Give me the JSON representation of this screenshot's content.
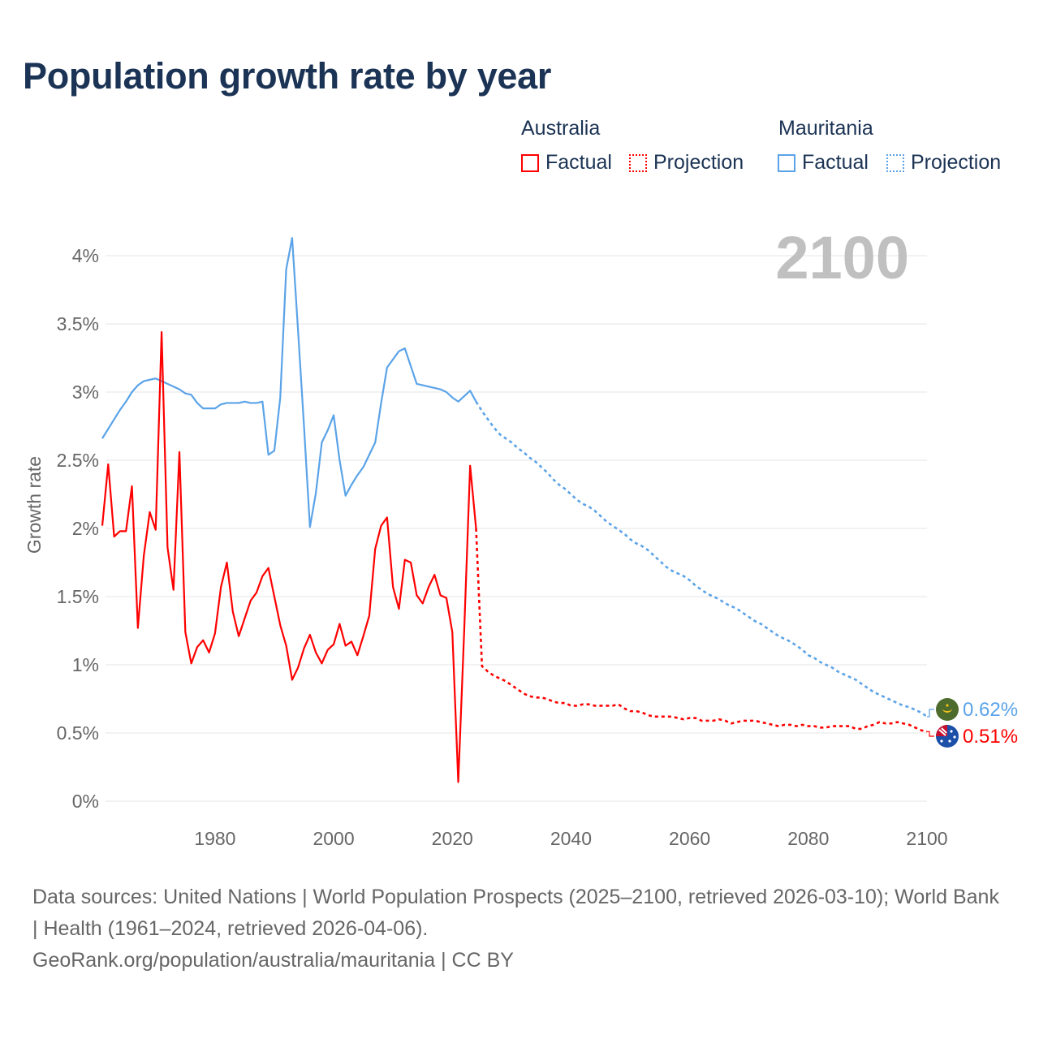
{
  "title": "Population growth rate by year",
  "legend": {
    "groups": [
      {
        "country": "Australia",
        "factual": "Factual",
        "projection": "Projection",
        "color": "#ff0000"
      },
      {
        "country": "Mauritania",
        "factual": "Factual",
        "projection": "Projection",
        "color": "#5ba3e8"
      }
    ]
  },
  "footer": {
    "sources": "Data sources: United Nations | World Population Prospects (2025–2100, retrieved 2026-03-10); World Bank | Health (1961–2024, retrieved 2026-04-06).",
    "credit": "GeoRank.org/population/australia/mauritania | CC BY"
  },
  "chart_data": {
    "type": "line",
    "title": "Population growth rate by year",
    "ylabel": "Growth rate",
    "xlabel": "",
    "year_label": "2100",
    "xlim": [
      1961,
      2100
    ],
    "ylim": [
      0,
      4.2
    ],
    "x_ticks": [
      1980,
      2000,
      2020,
      2040,
      2060,
      2080,
      2100
    ],
    "y_ticks": [
      0,
      0.5,
      1,
      1.5,
      2,
      2.5,
      3,
      3.5,
      4
    ],
    "y_tick_labels": [
      "0%",
      "0.5%",
      "1%",
      "1.5%",
      "2%",
      "2.5%",
      "3%",
      "3.5%",
      "4%"
    ],
    "grid": true,
    "legend_position": "top-right",
    "series": [
      {
        "name": "Australia",
        "color": "#ff0000",
        "end_label": "0.51%",
        "factual_start": 1961,
        "factual": [
          2.02,
          2.47,
          1.94,
          1.98,
          1.98,
          2.31,
          1.27,
          1.8,
          2.12,
          1.99,
          3.44,
          1.86,
          1.55,
          2.56,
          1.24,
          1.01,
          1.13,
          1.18,
          1.09,
          1.23,
          1.57,
          1.75,
          1.39,
          1.21,
          1.34,
          1.47,
          1.53,
          1.65,
          1.71,
          1.5,
          1.29,
          1.14,
          0.89,
          0.98,
          1.12,
          1.22,
          1.09,
          1.01,
          1.11,
          1.15,
          1.3,
          1.14,
          1.17,
          1.07,
          1.21,
          1.36,
          1.85,
          2.02,
          2.08,
          1.57,
          1.41,
          1.77,
          1.75,
          1.51,
          1.45,
          1.57,
          1.66,
          1.51,
          1.49,
          1.24,
          0.14,
          1.25,
          2.46,
          2.0
        ],
        "projection_start": 2025,
        "projection": [
          0.99,
          0.95,
          0.92,
          0.9,
          0.88,
          0.85,
          0.82,
          0.79,
          0.77,
          0.76,
          0.76,
          0.75,
          0.73,
          0.72,
          0.72,
          0.7,
          0.7,
          0.71,
          0.71,
          0.7,
          0.7,
          0.7,
          0.7,
          0.71,
          0.68,
          0.66,
          0.66,
          0.65,
          0.63,
          0.62,
          0.62,
          0.62,
          0.62,
          0.61,
          0.6,
          0.61,
          0.61,
          0.59,
          0.59,
          0.59,
          0.6,
          0.59,
          0.57,
          0.58,
          0.59,
          0.59,
          0.59,
          0.58,
          0.57,
          0.56,
          0.55,
          0.56,
          0.56,
          0.55,
          0.56,
          0.55,
          0.55,
          0.54,
          0.54,
          0.55,
          0.55,
          0.55,
          0.55,
          0.53,
          0.53,
          0.55,
          0.56,
          0.58,
          0.57,
          0.57,
          0.58,
          0.57,
          0.56,
          0.54,
          0.52,
          0.51
        ]
      },
      {
        "name": "Mauritania",
        "color": "#5ba3e8",
        "end_label": "0.62%",
        "factual_start": 1961,
        "factual": [
          2.66,
          2.73,
          2.8,
          2.87,
          2.93,
          3.0,
          3.05,
          3.08,
          3.09,
          3.1,
          3.08,
          3.06,
          3.04,
          3.02,
          2.99,
          2.98,
          2.92,
          2.88,
          2.88,
          2.88,
          2.91,
          2.92,
          2.92,
          2.92,
          2.93,
          2.92,
          2.92,
          2.93,
          2.54,
          2.57,
          2.96,
          3.9,
          4.13,
          3.45,
          2.75,
          2.01,
          2.26,
          2.63,
          2.72,
          2.83,
          2.5,
          2.24,
          2.32,
          2.39,
          2.45,
          2.54,
          2.63,
          2.92,
          3.18,
          3.24,
          3.3,
          3.32,
          3.19,
          3.06,
          3.05,
          3.04,
          3.03,
          3.02,
          3.0,
          2.96,
          2.93,
          2.97,
          3.01,
          2.93
        ],
        "projection_start": 2025,
        "projection": [
          2.86,
          2.8,
          2.74,
          2.69,
          2.66,
          2.63,
          2.59,
          2.56,
          2.52,
          2.49,
          2.45,
          2.41,
          2.36,
          2.32,
          2.29,
          2.25,
          2.21,
          2.18,
          2.16,
          2.13,
          2.09,
          2.05,
          2.02,
          1.99,
          1.96,
          1.92,
          1.89,
          1.87,
          1.84,
          1.8,
          1.76,
          1.72,
          1.69,
          1.67,
          1.65,
          1.62,
          1.58,
          1.55,
          1.52,
          1.5,
          1.48,
          1.45,
          1.43,
          1.41,
          1.38,
          1.35,
          1.32,
          1.3,
          1.27,
          1.24,
          1.21,
          1.19,
          1.17,
          1.14,
          1.11,
          1.07,
          1.05,
          1.02,
          1.0,
          0.98,
          0.95,
          0.93,
          0.91,
          0.89,
          0.86,
          0.83,
          0.8,
          0.78,
          0.76,
          0.74,
          0.72,
          0.7,
          0.69,
          0.67,
          0.65,
          0.62
        ]
      }
    ]
  }
}
